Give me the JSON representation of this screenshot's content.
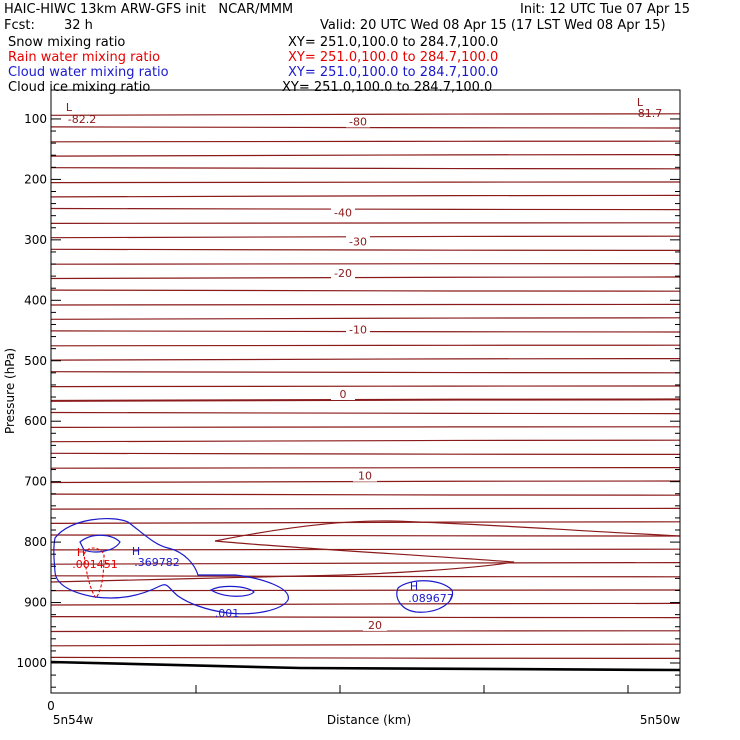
{
  "header": {
    "title_line": "HAIC-HIWC 13km ARW-GFS init   NCAR/MMM",
    "init": "Init: 12 UTC Tue 07 Apr 15",
    "fcst_label": "Fcst:",
    "fcst_value": "32 h",
    "valid": "Valid: 20 UTC Wed 08 Apr 15 (17 LST Wed 08 Apr 15)"
  },
  "legend": [
    {
      "name": "Snow mixing ratio",
      "xy": "XY= 251.0,100.0 to 284.7,100.0",
      "color": "#000000"
    },
    {
      "name": "Rain water mixing ratio",
      "xy": "XY= 251.0,100.0 to 284.7,100.0",
      "color": "#e60000"
    },
    {
      "name": "Cloud water mixing ratio",
      "xy": "XY= 251.0,100.0 to 284.7,100.0",
      "color": "#1a1acc"
    },
    {
      "name": "Cloud ice mixing ratio",
      "xy": "XY= 251.0,100.0 to 284.7,100.0",
      "color": "#000000"
    }
  ],
  "chart_data": {
    "type": "contour",
    "xlabel": "Distance (km)",
    "ylabel": "Pressure (hPa)",
    "x_start_tick": "0",
    "x_left_label": "5n54w",
    "x_right_label": "5n50w",
    "y_ticks": [
      100,
      200,
      300,
      400,
      500,
      600,
      700,
      800,
      900,
      1000
    ],
    "ylim_hPa": [
      85,
      1050
    ],
    "temperature_contour_labels": [
      {
        "label": "-80",
        "p": 104
      },
      {
        "label": "-40",
        "p": 255
      },
      {
        "label": "-30",
        "p": 303
      },
      {
        "label": "-20",
        "p": 355
      },
      {
        "label": "-10",
        "p": 448
      },
      {
        "label": "0",
        "p": 555
      },
      {
        "label": "10",
        "p": 690
      },
      {
        "label": "20",
        "p": 937
      }
    ],
    "extrema": [
      {
        "marker": "L",
        "value": "-82.2",
        "side": "left",
        "color": "#8b1a1a"
      },
      {
        "marker": "L",
        "value": "-81.7",
        "side": "right",
        "color": "#8b1a1a"
      },
      {
        "marker": "H",
        "value": ".001451",
        "field": "rain water",
        "color": "#e60000"
      },
      {
        "marker": "H",
        "value": ".369782",
        "field": "cloud water",
        "color": "#1a1acc"
      },
      {
        "marker": "H",
        "value": ".089677",
        "field": "cloud water",
        "color": "#1a1acc"
      }
    ],
    "cloud_water_labels": [
      ".001"
    ],
    "colors": {
      "temperature": "#8b1a1a",
      "rain": "#e60000",
      "cloud_water": "#1a1acc",
      "terrain": "#000000"
    }
  }
}
